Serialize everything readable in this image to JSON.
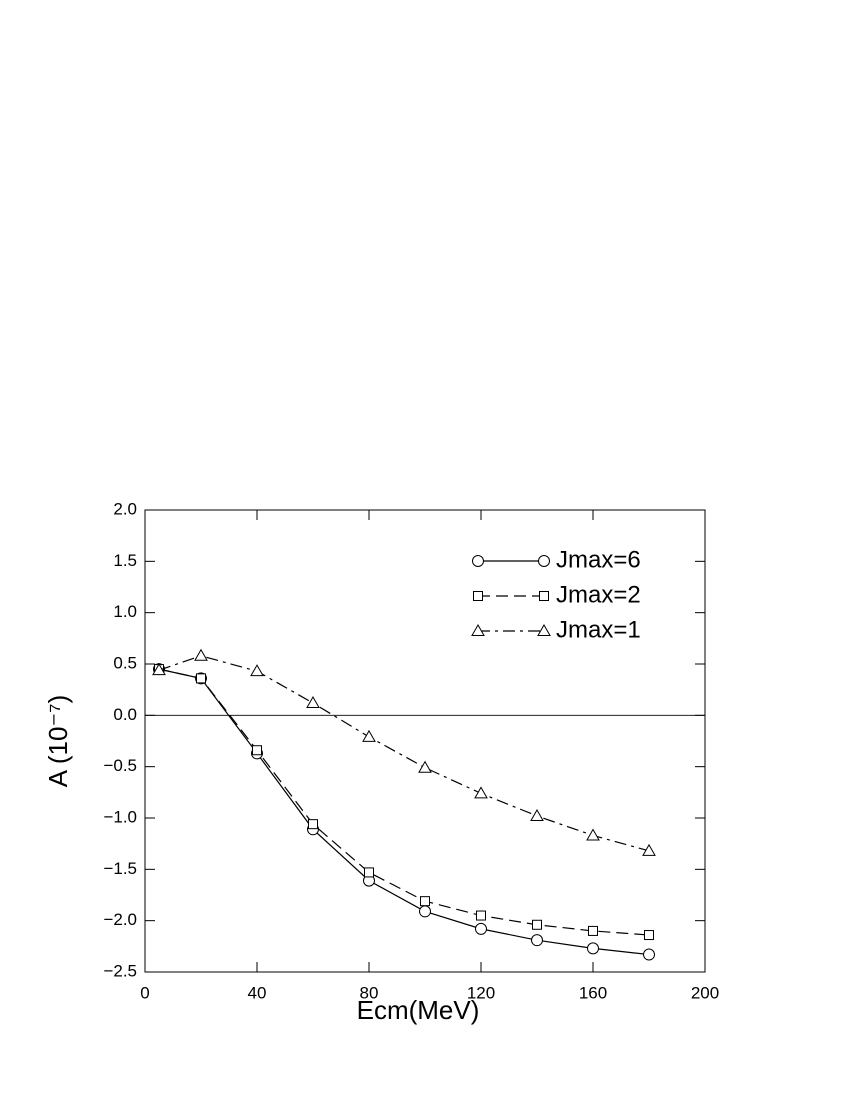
{
  "chart_data": {
    "type": "line",
    "x_label": "Ecm(MeV)",
    "y_label": "A (10⁻⁷)",
    "x": [
      5,
      20,
      40,
      60,
      80,
      100,
      120,
      140,
      160,
      180
    ],
    "series": [
      {
        "name": "Jmax=6",
        "color": "#000000",
        "marker": "circle",
        "dash": "solid",
        "values": [
          0.45,
          0.36,
          -0.37,
          -1.11,
          -1.61,
          -1.91,
          -2.08,
          -2.19,
          -2.27,
          -2.33
        ]
      },
      {
        "name": "Jmax=2",
        "color": "#000000",
        "marker": "square",
        "dash": "dashed",
        "values": [
          0.45,
          0.36,
          -0.34,
          -1.06,
          -1.53,
          -1.81,
          -1.95,
          -2.04,
          -2.1,
          -2.14
        ]
      },
      {
        "name": "Jmax=1",
        "color": "#000000",
        "marker": "triangle",
        "dash": "dashdot",
        "values": [
          0.44,
          0.58,
          0.43,
          0.12,
          -0.21,
          -0.51,
          -0.76,
          -0.98,
          -1.17,
          -1.32
        ]
      }
    ],
    "xlim": [
      0,
      200
    ],
    "xticks": [
      0,
      40,
      80,
      120,
      160,
      200
    ],
    "ylim": [
      -2.5,
      2.0
    ],
    "yticks": [
      {
        "value": -2.5,
        "label": "−2.5"
      },
      {
        "value": -2.0,
        "label": "−2.0"
      },
      {
        "value": -1.5,
        "label": "−1.5"
      },
      {
        "value": -1.0,
        "label": "−1.0"
      },
      {
        "value": -0.5,
        "label": "−0.5"
      },
      {
        "value": 0,
        "label": "0.0"
      },
      {
        "value": 0.5,
        "label": "0.5"
      },
      {
        "value": 1.0,
        "label": "1.0"
      },
      {
        "value": 1.5,
        "label": "1.5"
      },
      {
        "value": 2.0,
        "label": "2.0"
      }
    ],
    "zero_line": true,
    "legend": "upper right"
  }
}
